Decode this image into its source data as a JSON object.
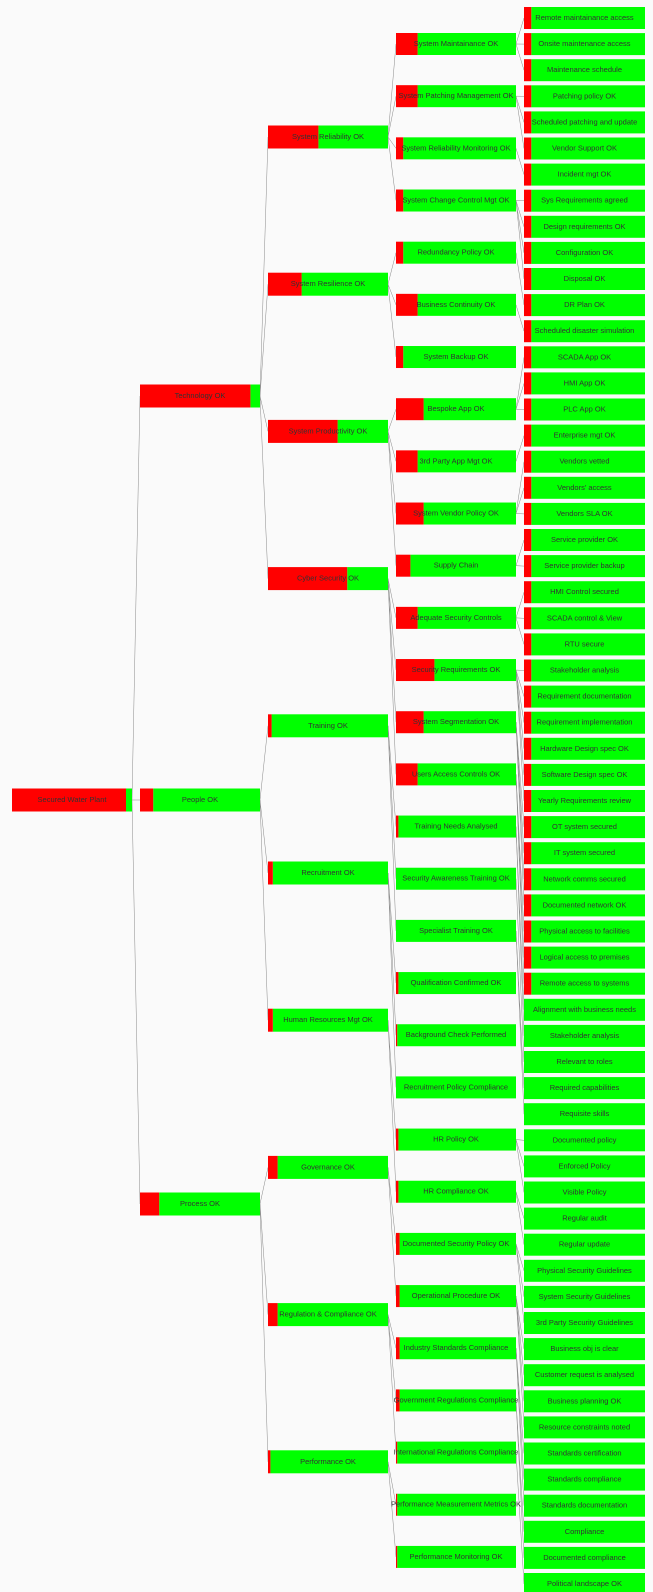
{
  "root": {
    "label": "Secured Water Plant",
    "fail": 0.95,
    "children": [
      {
        "label": "Technology OK",
        "fail": 0.92,
        "children": [
          {
            "label": "System Reliability OK",
            "fail": 0.42,
            "children": [
              {
                "label": "System Maintainance OK",
                "fail": 0.18,
                "children": [
                  {
                    "label": "Remote maintainance access",
                    "fail": 0.06
                  },
                  {
                    "label": "Onsite maintenance access",
                    "fail": 0.06
                  },
                  {
                    "label": "Maintenance schedule",
                    "fail": 0.06
                  }
                ]
              },
              {
                "label": "System Patching Management OK",
                "fail": 0.18,
                "children": [
                  {
                    "label": "Patching policy OK",
                    "fail": 0.06
                  },
                  {
                    "label": "Scheduled patching and update",
                    "fail": 0.06
                  },
                  {
                    "label": "Vendor Support OK",
                    "fail": 0.06
                  }
                ]
              },
              {
                "label": "System Reliability Monitoring OK",
                "fail": 0.06,
                "children": [
                  {
                    "label": "Incident mgt OK",
                    "fail": 0.06
                  }
                ]
              },
              {
                "label": "System Change Control Mgt OK",
                "fail": 0.06,
                "children": [
                  {
                    "label": "Sys Requirements agreed",
                    "fail": 0.06
                  },
                  {
                    "label": "Design requirements OK",
                    "fail": 0.06
                  },
                  {
                    "label": "Configuration OK",
                    "fail": 0.06
                  },
                  {
                    "label": "Disposal OK",
                    "fail": 0.06
                  }
                ]
              }
            ]
          },
          {
            "label": "System Resilience OK",
            "fail": 0.28,
            "children": [
              {
                "label": "Redundancy Policy OK",
                "fail": 0.06,
                "children": [
                  {
                    "label": "DR Plan OK",
                    "fail": 0.06
                  }
                ]
              },
              {
                "label": "Business Continuity OK",
                "fail": 0.18,
                "children": [
                  {
                    "label": "Scheduled disaster simulation",
                    "fail": 0.06
                  }
                ]
              },
              {
                "label": "System Backup OK",
                "fail": 0.06
              }
            ]
          },
          {
            "label": "System Productivity OK",
            "fail": 0.58,
            "children": [
              {
                "label": "Bespoke App OK",
                "fail": 0.23,
                "children": [
                  {
                    "label": "SCADA App OK",
                    "fail": 0.06
                  },
                  {
                    "label": "HMI App OK",
                    "fail": 0.06
                  },
                  {
                    "label": "PLC App OK",
                    "fail": 0.06
                  }
                ]
              },
              {
                "label": "3rd Party App Mgt OK",
                "fail": 0.18,
                "children": [
                  {
                    "label": "Enterprise mgt OK",
                    "fail": 0.06
                  }
                ]
              },
              {
                "label": "System Vendor Policy OK",
                "fail": 0.23,
                "children": [
                  {
                    "label": "Vendors vetted",
                    "fail": 0.06
                  },
                  {
                    "label": "Vendors' access",
                    "fail": 0.06
                  },
                  {
                    "label": "Vendors SLA OK",
                    "fail": 0.06
                  }
                ]
              },
              {
                "label": "Supply Chain",
                "fail": 0.12,
                "children": [
                  {
                    "label": "Service provider OK",
                    "fail": 0.06
                  },
                  {
                    "label": "Service provider backup",
                    "fail": 0.06
                  }
                ]
              }
            ]
          },
          {
            "label": "Cyber Security OK",
            "fail": 0.66,
            "children": [
              {
                "label": "Adequate Security Controls",
                "fail": 0.18,
                "children": [
                  {
                    "label": "HMI Control secured",
                    "fail": 0.06
                  },
                  {
                    "label": "SCADA control & View",
                    "fail": 0.06
                  },
                  {
                    "label": "RTU secure",
                    "fail": 0.06
                  }
                ]
              },
              {
                "label": "Security Requirements OK",
                "fail": 0.32,
                "children": [
                  {
                    "label": "Stakeholder analysis",
                    "fail": 0.06
                  },
                  {
                    "label": "Requirement documentation",
                    "fail": 0.06
                  },
                  {
                    "label": "Requirement implementation",
                    "fail": 0.06
                  },
                  {
                    "label": "Hardware Design spec OK",
                    "fail": 0.06
                  },
                  {
                    "label": "Software Design spec OK",
                    "fail": 0.06
                  },
                  {
                    "label": "Yearly Requirements review",
                    "fail": 0.06
                  }
                ]
              },
              {
                "label": "System Segmentation OK",
                "fail": 0.23,
                "children": [
                  {
                    "label": "OT system secured",
                    "fail": 0.06
                  },
                  {
                    "label": "IT system secured",
                    "fail": 0.06
                  },
                  {
                    "label": "Network comms secured",
                    "fail": 0.06
                  },
                  {
                    "label": "Documented network OK",
                    "fail": 0.06
                  }
                ]
              },
              {
                "label": "Users Access Controls OK",
                "fail": 0.18,
                "children": [
                  {
                    "label": "Physical access to facilities",
                    "fail": 0.06
                  },
                  {
                    "label": "Logical access to premises",
                    "fail": 0.06
                  },
                  {
                    "label": "Remote access to systems",
                    "fail": 0.06
                  }
                ]
              }
            ]
          }
        ]
      },
      {
        "label": "People OK",
        "fail": 0.11,
        "children": [
          {
            "label": "Training OK",
            "fail": 0.03,
            "children": [
              {
                "label": "Training Needs Analysed",
                "fail": 0.02,
                "children": [
                  {
                    "label": "Alignment with business needs",
                    "fail": 0
                  },
                  {
                    "label": "Stakeholder analysis",
                    "fail": 0
                  }
                ]
              },
              {
                "label": "Security Awareness Training OK",
                "fail": 0,
                "children": [
                  {
                    "label": "Relevant to roles",
                    "fail": 0
                  }
                ]
              },
              {
                "label": "Specialist Training OK",
                "fail": 0,
                "children": [
                  {
                    "label": "Required capabilities",
                    "fail": 0
                  },
                  {
                    "label": "Requisite skills",
                    "fail": 0
                  }
                ]
              }
            ]
          },
          {
            "label": "Recruitment OK",
            "fail": 0.04,
            "children": [
              {
                "label": "Qualification Confirmed OK",
                "fail": 0.02
              },
              {
                "label": "Background Check Performed",
                "fail": 0.01
              },
              {
                "label": "Recruitment Policy Compliance",
                "fail": 0
              }
            ]
          },
          {
            "label": "Human Resources Mgt OK",
            "fail": 0.04,
            "children": [
              {
                "label": "HR Policy OK",
                "fail": 0.02,
                "children": [
                  {
                    "label": "Documented policy",
                    "fail": 0
                  },
                  {
                    "label": "Enforced Policy",
                    "fail": 0
                  },
                  {
                    "label": "Visible Policy",
                    "fail": 0
                  }
                ]
              },
              {
                "label": "HR Compliance OK",
                "fail": 0.02,
                "children": [
                  {
                    "label": "Regular audit",
                    "fail": 0
                  },
                  {
                    "label": "Regular update",
                    "fail": 0
                  }
                ]
              }
            ]
          }
        ]
      },
      {
        "label": "Process OK",
        "fail": 0.16,
        "children": [
          {
            "label": "Governance OK",
            "fail": 0.08,
            "children": [
              {
                "label": "Documented Security Policy OK",
                "fail": 0.03,
                "children": [
                  {
                    "label": "Physical Security Guidelines",
                    "fail": 0
                  },
                  {
                    "label": "System Security Guidelines",
                    "fail": 0
                  },
                  {
                    "label": "3rd Party Security Guidelines",
                    "fail": 0
                  }
                ]
              },
              {
                "label": "Operational  Procedure OK",
                "fail": 0.03,
                "children": [
                  {
                    "label": "Business obj is clear",
                    "fail": 0
                  },
                  {
                    "label": "Customer request is analysed",
                    "fail": 0
                  },
                  {
                    "label": "Business planning OK",
                    "fail": 0
                  },
                  {
                    "label": "Resource constraints noted",
                    "fail": 0
                  }
                ]
              }
            ]
          },
          {
            "label": "Regulation & Compliance OK",
            "fail": 0.08,
            "children": [
              {
                "label": "Industry Standards Compliance",
                "fail": 0.03,
                "children": [
                  {
                    "label": "Standards certification",
                    "fail": 0
                  },
                  {
                    "label": "Standards compliance",
                    "fail": 0
                  },
                  {
                    "label": "Standards documentation",
                    "fail": 0
                  }
                ]
              },
              {
                "label": "Government Regulations Compliance",
                "fail": 0.03,
                "children": [
                  {
                    "label": "Compliance",
                    "fail": 0
                  },
                  {
                    "label": "Documented compliance",
                    "fail": 0
                  }
                ]
              },
              {
                "label": "International Regulations Compliance",
                "fail": 0.01,
                "children": [
                  {
                    "label": "Political landscape OK",
                    "fail": 0
                  }
                ]
              }
            ]
          },
          {
            "label": "Performance OK",
            "fail": 0.02,
            "children": [
              {
                "label": "Performance Measurement Metrics OK",
                "fail": 0.01
              },
              {
                "label": "Performance Monitoring OK",
                "fail": 0.01
              }
            ]
          }
        ]
      }
    ]
  }
}
